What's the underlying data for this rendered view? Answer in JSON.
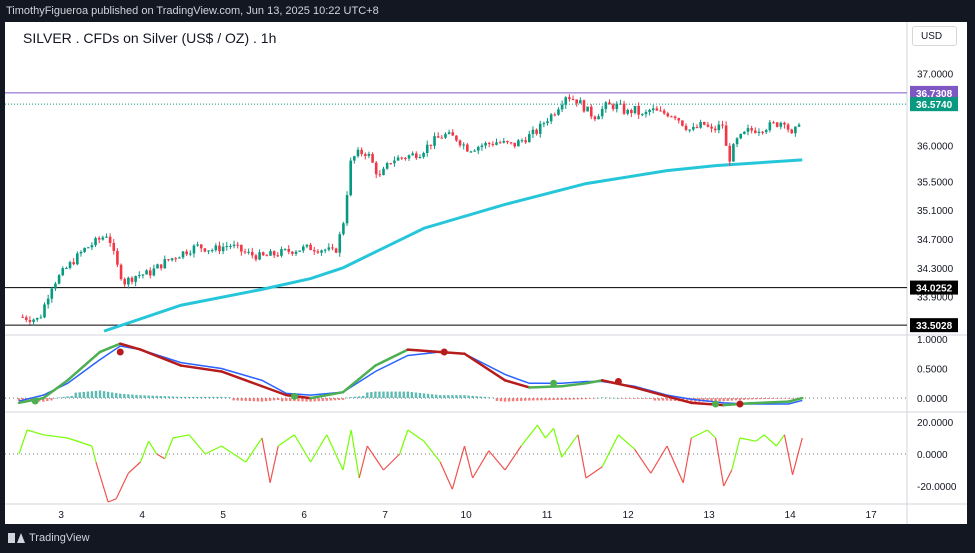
{
  "header": {
    "publisher": "TimothyFigueroa published on TradingView.com, Jun 13, 2025 10:22 UTC+8"
  },
  "footer": {
    "brand": "TradingView"
  },
  "chart_data": {
    "type": "candlestick",
    "title": "SILVER . CFDs on Silver (US$ / OZ) . 1h",
    "currency_button": "USD",
    "price_axis": {
      "ticks": [
        "37.0000",
        "36.0000",
        "35.5000",
        "35.1000",
        "34.7000",
        "34.3000",
        "33.9000"
      ],
      "tick_values": [
        37.0,
        36.0,
        35.5,
        35.1,
        34.7,
        34.3,
        33.9
      ]
    },
    "x_axis": {
      "ticks": [
        "3",
        "4",
        "5",
        "6",
        "7",
        "10",
        "11",
        "12",
        "13",
        "14",
        "17"
      ]
    },
    "horizontal_lines": [
      {
        "value": 36.7308,
        "label": "36.7308",
        "color": "#7e57c2",
        "style": "solid"
      },
      {
        "value": 36.574,
        "label": "36.5740",
        "color": "#089981",
        "style": "dotted"
      },
      {
        "value": 34.0252,
        "label": "34.0252",
        "color": "#000000",
        "style": "solid"
      },
      {
        "value": 33.5028,
        "label": "33.5028",
        "color": "#000000",
        "style": "solid"
      }
    ],
    "price_path": [
      [
        0,
        33.62
      ],
      [
        0.25,
        33.58
      ],
      [
        0.4,
        34.05
      ],
      [
        0.55,
        34.25
      ],
      [
        0.8,
        34.55
      ],
      [
        1.0,
        34.7
      ],
      [
        1.1,
        34.78
      ],
      [
        1.2,
        34.35
      ],
      [
        1.3,
        34.1
      ],
      [
        1.45,
        34.2
      ],
      [
        1.6,
        34.22
      ],
      [
        1.8,
        34.38
      ],
      [
        2.0,
        34.5
      ],
      [
        2.2,
        34.6
      ],
      [
        2.4,
        34.55
      ],
      [
        2.6,
        34.62
      ],
      [
        2.8,
        34.5
      ],
      [
        3.0,
        34.45
      ],
      [
        3.2,
        34.5
      ],
      [
        3.4,
        34.55
      ],
      [
        3.6,
        34.58
      ],
      [
        3.8,
        34.55
      ],
      [
        3.9,
        34.5
      ],
      [
        4.0,
        34.9
      ],
      [
        4.1,
        35.8
      ],
      [
        4.2,
        35.9
      ],
      [
        4.3,
        35.9
      ],
      [
        4.45,
        35.55
      ],
      [
        4.6,
        35.8
      ],
      [
        4.8,
        35.85
      ],
      [
        4.95,
        35.9
      ],
      [
        5.1,
        36.05
      ],
      [
        5.25,
        36.15
      ],
      [
        5.4,
        36.1
      ],
      [
        5.55,
        35.95
      ],
      [
        5.7,
        36.0
      ],
      [
        5.9,
        36.05
      ],
      [
        6.1,
        36.0
      ],
      [
        6.25,
        36.1
      ],
      [
        6.4,
        36.2
      ],
      [
        6.5,
        36.35
      ],
      [
        6.6,
        36.45
      ],
      [
        6.75,
        36.7
      ],
      [
        6.9,
        36.62
      ],
      [
        7.0,
        36.5
      ],
      [
        7.1,
        36.4
      ],
      [
        7.25,
        36.55
      ],
      [
        7.4,
        36.55
      ],
      [
        7.5,
        36.45
      ],
      [
        7.6,
        36.5
      ],
      [
        7.7,
        36.4
      ],
      [
        7.8,
        36.5
      ],
      [
        7.9,
        36.45
      ],
      [
        8.0,
        36.45
      ],
      [
        8.1,
        36.42
      ],
      [
        8.2,
        36.3
      ],
      [
        8.3,
        36.2
      ],
      [
        8.45,
        36.3
      ],
      [
        8.55,
        36.2
      ],
      [
        8.7,
        36.3
      ],
      [
        8.75,
        35.75
      ],
      [
        8.85,
        36.05
      ],
      [
        9.0,
        36.2
      ],
      [
        9.2,
        36.25
      ],
      [
        9.35,
        36.3
      ],
      [
        9.45,
        36.35
      ],
      [
        9.55,
        36.1
      ],
      [
        9.65,
        36.4
      ],
      [
        9.67,
        36.5
      ]
    ],
    "ma_line": {
      "color": "#26c6da",
      "points": [
        [
          1.05,
          33.42
        ],
        [
          2.0,
          33.78
        ],
        [
          3.0,
          34.0
        ],
        [
          3.6,
          34.15
        ],
        [
          4.0,
          34.3
        ],
        [
          5.0,
          34.85
        ],
        [
          6.0,
          35.18
        ],
        [
          7.0,
          35.47
        ],
        [
          8.0,
          35.65
        ],
        [
          8.6,
          35.72
        ],
        [
          9.67,
          35.8
        ]
      ]
    },
    "osc1": {
      "range": [
        -0.1,
        1.05
      ],
      "ticks": [
        "1.0000",
        "0.5000",
        "0.0000"
      ],
      "tick_values": [
        1.0,
        0.5,
        0.0
      ],
      "fast": [
        [
          0,
          -0.08
        ],
        [
          0.3,
          0.0
        ],
        [
          0.6,
          0.3
        ],
        [
          1.0,
          0.78
        ],
        [
          1.25,
          0.92
        ],
        [
          1.5,
          0.82
        ],
        [
          2.0,
          0.55
        ],
        [
          2.5,
          0.45
        ],
        [
          3.0,
          0.2
        ],
        [
          3.3,
          0.05
        ],
        [
          3.6,
          0.0
        ],
        [
          4.0,
          0.1
        ],
        [
          4.4,
          0.55
        ],
        [
          4.8,
          0.82
        ],
        [
          5.2,
          0.78
        ],
        [
          5.5,
          0.75
        ],
        [
          6.0,
          0.3
        ],
        [
          6.3,
          0.18
        ],
        [
          6.7,
          0.2
        ],
        [
          7.0,
          0.25
        ],
        [
          7.2,
          0.3
        ],
        [
          7.6,
          0.18
        ],
        [
          8.0,
          0.03
        ],
        [
          8.3,
          -0.08
        ],
        [
          8.7,
          -0.12
        ],
        [
          9.0,
          -0.09
        ],
        [
          9.5,
          -0.06
        ],
        [
          9.67,
          0.0
        ]
      ],
      "slow": [
        [
          0,
          -0.05
        ],
        [
          0.3,
          0.05
        ],
        [
          0.6,
          0.25
        ],
        [
          1.0,
          0.65
        ],
        [
          1.25,
          0.88
        ],
        [
          1.5,
          0.82
        ],
        [
          2.0,
          0.6
        ],
        [
          2.5,
          0.5
        ],
        [
          3.0,
          0.3
        ],
        [
          3.3,
          0.08
        ],
        [
          3.6,
          0.05
        ],
        [
          4.0,
          0.1
        ],
        [
          4.4,
          0.45
        ],
        [
          4.8,
          0.72
        ],
        [
          5.2,
          0.78
        ],
        [
          5.5,
          0.75
        ],
        [
          6.0,
          0.4
        ],
        [
          6.3,
          0.25
        ],
        [
          6.7,
          0.25
        ],
        [
          7.0,
          0.28
        ],
        [
          7.2,
          0.28
        ],
        [
          7.6,
          0.2
        ],
        [
          8.0,
          0.05
        ],
        [
          8.3,
          -0.02
        ],
        [
          8.7,
          -0.08
        ],
        [
          9.0,
          -0.1
        ],
        [
          9.5,
          -0.1
        ],
        [
          9.67,
          -0.04
        ]
      ],
      "dots": [
        [
          0.2,
          -0.05,
          "green"
        ],
        [
          1.25,
          0.78,
          "red"
        ],
        [
          3.4,
          0.03,
          "green"
        ],
        [
          5.25,
          0.78,
          "red"
        ],
        [
          6.6,
          0.25,
          "green"
        ],
        [
          7.4,
          0.28,
          "red"
        ],
        [
          8.6,
          -0.1,
          "green"
        ],
        [
          8.9,
          -0.1,
          "red"
        ]
      ]
    },
    "osc2": {
      "range": [
        -30,
        25
      ],
      "ticks": [
        "20.0000",
        "0.0000",
        "-20.0000"
      ],
      "tick_values": [
        20,
        0,
        -20
      ],
      "values": [
        [
          0,
          0
        ],
        [
          0.1,
          15
        ],
        [
          0.3,
          12
        ],
        [
          0.6,
          10
        ],
        [
          0.9,
          5
        ],
        [
          0.95,
          -5
        ],
        [
          1.1,
          -30
        ],
        [
          1.2,
          -28
        ],
        [
          1.35,
          -12
        ],
        [
          1.5,
          -5
        ],
        [
          1.6,
          8
        ],
        [
          1.7,
          0
        ],
        [
          1.8,
          -3
        ],
        [
          1.9,
          10
        ],
        [
          2.1,
          12
        ],
        [
          2.3,
          0
        ],
        [
          2.5,
          5
        ],
        [
          2.8,
          -5
        ],
        [
          3.0,
          10
        ],
        [
          3.1,
          -18
        ],
        [
          3.2,
          5
        ],
        [
          3.4,
          12
        ],
        [
          3.6,
          -5
        ],
        [
          3.8,
          12
        ],
        [
          4.0,
          -10
        ],
        [
          4.1,
          15
        ],
        [
          4.2,
          -15
        ],
        [
          4.3,
          5
        ],
        [
          4.5,
          -10
        ],
        [
          4.7,
          0
        ],
        [
          4.8,
          15
        ],
        [
          5.0,
          8
        ],
        [
          5.2,
          -5
        ],
        [
          5.35,
          -22
        ],
        [
          5.5,
          5
        ],
        [
          5.6,
          -15
        ],
        [
          5.8,
          2
        ],
        [
          6.0,
          -10
        ],
        [
          6.2,
          5
        ],
        [
          6.4,
          18
        ],
        [
          6.5,
          10
        ],
        [
          6.6,
          16
        ],
        [
          6.7,
          -2
        ],
        [
          6.9,
          12
        ],
        [
          7.0,
          -15
        ],
        [
          7.2,
          -8
        ],
        [
          7.4,
          12
        ],
        [
          7.6,
          3
        ],
        [
          7.8,
          -12
        ],
        [
          8.0,
          5
        ],
        [
          8.2,
          -18
        ],
        [
          8.3,
          10
        ],
        [
          8.5,
          15
        ],
        [
          8.6,
          10
        ],
        [
          8.7,
          -20
        ],
        [
          8.8,
          -10
        ],
        [
          8.9,
          10
        ],
        [
          9.1,
          8
        ],
        [
          9.2,
          12
        ],
        [
          9.35,
          5
        ],
        [
          9.45,
          12
        ],
        [
          9.55,
          -13
        ],
        [
          9.67,
          10
        ]
      ]
    }
  }
}
